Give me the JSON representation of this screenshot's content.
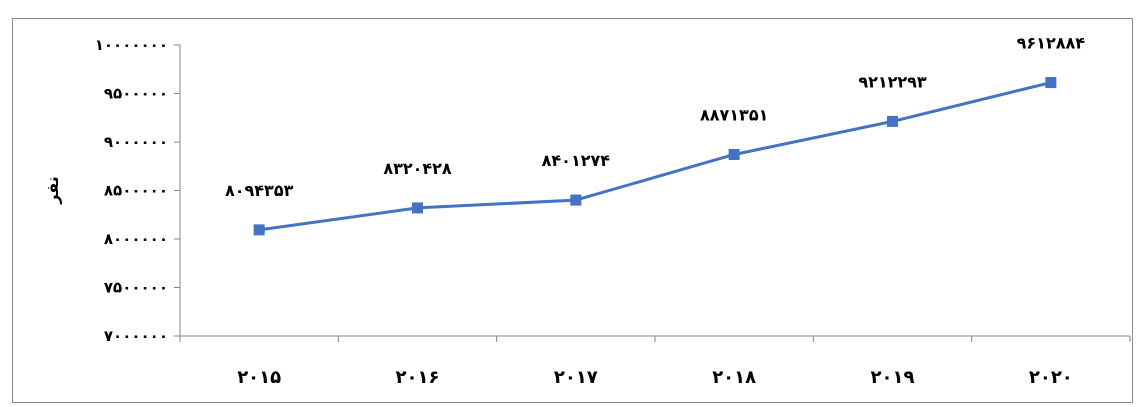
{
  "chart_data": {
    "type": "line",
    "title": "",
    "xlabel": "",
    "ylabel": "نفر",
    "categories": [
      "۲۰۱۵",
      "۲۰۱۶",
      "۲۰۱۷",
      "۲۰۱۸",
      "۲۰۱۹",
      "۲۰۲۰"
    ],
    "series": [
      {
        "values": [
          8094353,
          8320428,
          8401274,
          8871351,
          9212293,
          9612884
        ],
        "value_labels": [
          "۸۰۹۴۳۵۳",
          "۸۳۲۰۴۲۸",
          "۸۴۰۱۲۷۴",
          "۸۸۷۱۳۵۱",
          "۹۲۱۲۲۹۳",
          "۹۶۱۲۸۸۴"
        ],
        "color": "#4472c4",
        "marker": "square"
      }
    ],
    "ylim": [
      7000000,
      10000000
    ],
    "yticks": [
      7000000,
      7500000,
      8000000,
      8500000,
      9000000,
      9500000,
      10000000
    ],
    "ytick_labels": [
      "۷۰۰۰۰۰۰",
      "۷۵۰۰۰۰۰",
      "۸۰۰۰۰۰۰",
      "۸۵۰۰۰۰۰",
      "۹۰۰۰۰۰۰",
      "۹۵۰۰۰۰۰",
      "۱۰۰۰۰۰۰۰"
    ],
    "grid": false,
    "legend": "none"
  }
}
